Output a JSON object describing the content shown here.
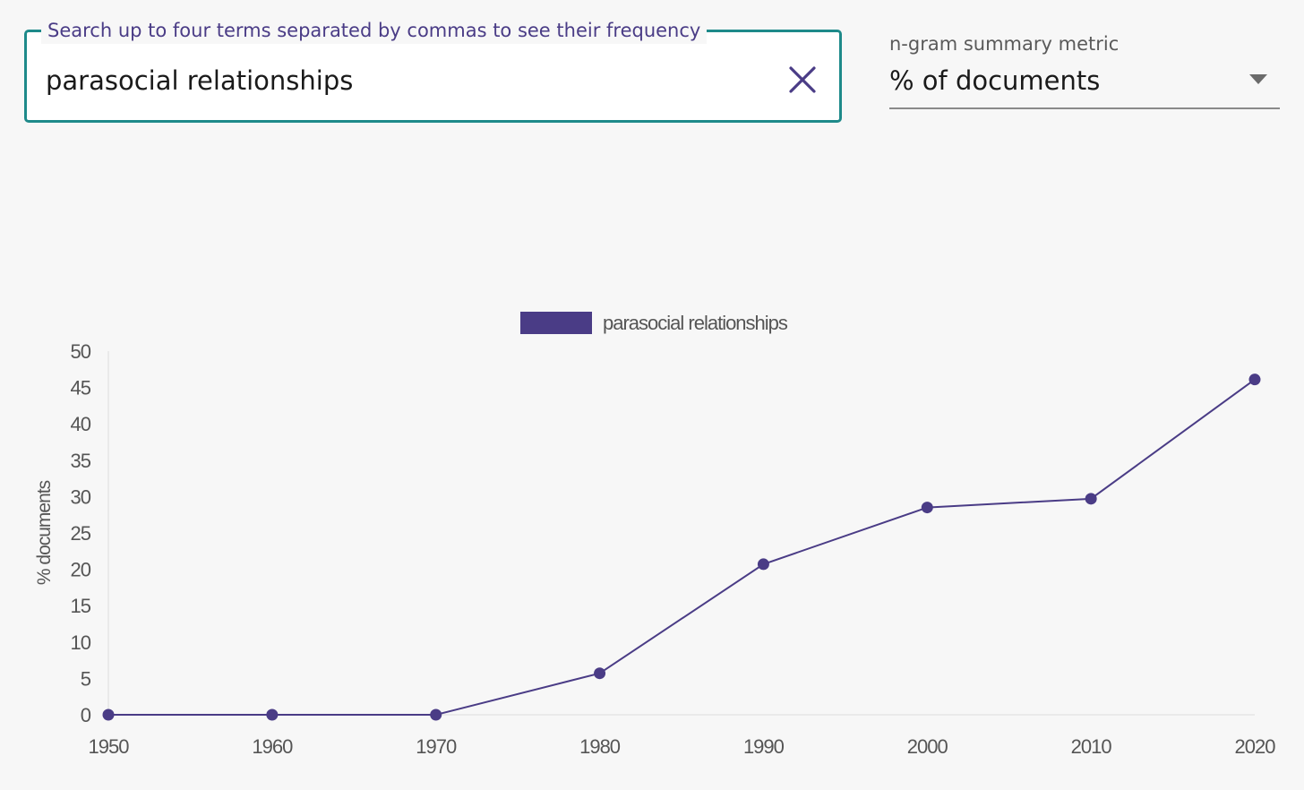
{
  "search": {
    "label": "Search up to four terms separated by commas to see their frequency",
    "value": "parasocial relationships",
    "clear_icon": "close-icon"
  },
  "metric": {
    "label": "n-gram summary metric",
    "value": "% of documents",
    "caret_icon": "chevron-down-icon"
  },
  "colors": {
    "accent": "#4a3c86",
    "border": "#1e8a8a",
    "background": "#f7f7f7"
  },
  "chart_data": {
    "type": "line",
    "x": [
      1950,
      1960,
      1970,
      1980,
      1990,
      2000,
      2010,
      2020
    ],
    "series": [
      {
        "name": "parasocial relationships",
        "values": [
          0,
          0,
          0,
          5.7,
          20.7,
          28.5,
          29.7,
          46.1
        ],
        "color": "#4a3c86"
      }
    ],
    "ylabel": "% documents",
    "xlabel": "",
    "ylim": [
      0,
      50
    ],
    "yticks": [
      0,
      5,
      10,
      15,
      20,
      25,
      30,
      35,
      40,
      45,
      50
    ],
    "legend": "top-center",
    "grid": false
  }
}
